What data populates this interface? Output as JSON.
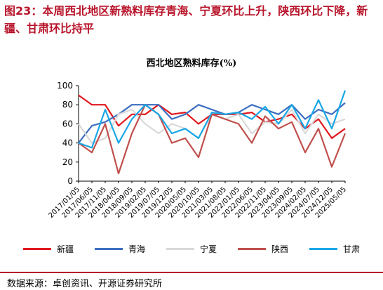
{
  "figure": {
    "title": "图23：本周西北地区新熟料库存青海、宁夏环比上升，陕西环比下降，新疆、甘肃环比持平",
    "source": "数据来源：卓创资讯、开源证券研究所"
  },
  "chart_data": {
    "type": "line",
    "title": "西北地区熟料库存(%)",
    "ylim": [
      0,
      100
    ],
    "yticks": [
      0,
      20,
      40,
      60,
      80,
      100
    ],
    "grid": false,
    "legend_position": "bottom",
    "x": [
      "2017/01/05",
      "2017/06/05",
      "2017/11/05",
      "2018/04/05",
      "2018/09/05",
      "2019/02/05",
      "2019/07/05",
      "2019/12/05",
      "2020/05/05",
      "2020/10/05",
      "2021/03/05",
      "2021/08/05",
      "2022/01/05",
      "2022/06/05",
      "2022/11/05",
      "2023/04/05",
      "2023/09/05",
      "2024/02/05",
      "2024/07/05",
      "2024/12/05",
      "2025/05/05"
    ],
    "series": [
      {
        "name": "新疆",
        "color": "#e0191f",
        "values": [
          90,
          80,
          80,
          58,
          70,
          70,
          80,
          70,
          72,
          60,
          70,
          70,
          70,
          72,
          62,
          65,
          70,
          55,
          65,
          45,
          55
        ]
      },
      {
        "name": "青海",
        "color": "#3c6fc0",
        "values": [
          40,
          58,
          62,
          70,
          80,
          80,
          80,
          65,
          70,
          80,
          75,
          70,
          72,
          80,
          75,
          70,
          80,
          65,
          75,
          70,
          82
        ]
      },
      {
        "name": "宁夏",
        "color": "#d9d9d9",
        "values": [
          60,
          40,
          45,
          70,
          75,
          60,
          50,
          60,
          55,
          45,
          70,
          65,
          70,
          50,
          62,
          60,
          75,
          50,
          70,
          60,
          65
        ]
      },
      {
        "name": "陕西",
        "color": "#c0504d",
        "values": [
          40,
          30,
          60,
          8,
          50,
          80,
          70,
          40,
          45,
          25,
          70,
          65,
          60,
          40,
          68,
          55,
          62,
          30,
          55,
          15,
          50
        ]
      },
      {
        "name": "甘肃",
        "color": "#1aa7e6",
        "values": [
          40,
          35,
          75,
          40,
          65,
          80,
          70,
          50,
          55,
          45,
          72,
          70,
          72,
          65,
          78,
          60,
          80,
          55,
          85,
          55,
          95
        ]
      }
    ]
  }
}
